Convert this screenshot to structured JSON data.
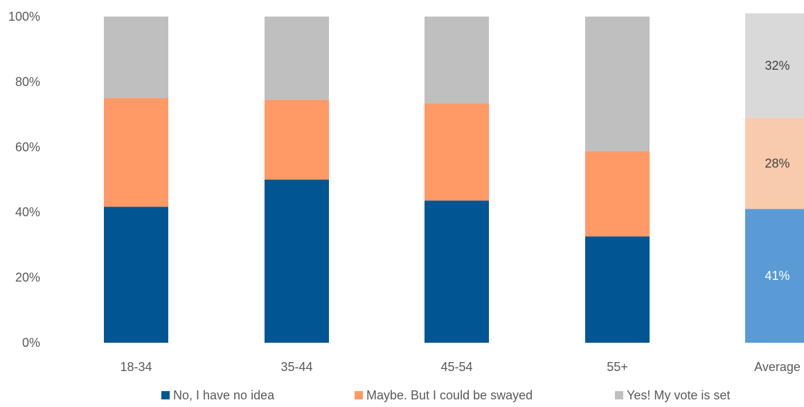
{
  "chart_data": {
    "type": "bar",
    "stacked": true,
    "categories": [
      "18-34",
      "35-44",
      "45-54",
      "55+",
      "Average"
    ],
    "series": [
      {
        "name": "No, I have no idea",
        "values": [
          41.7,
          50.0,
          43.6,
          32.6,
          41
        ],
        "color": "#005592",
        "average_color": "#5B9BD5"
      },
      {
        "name": "Maybe. But I could be swayed",
        "values": [
          33.3,
          24.5,
          29.8,
          26.1,
          28
        ],
        "color": "#FF9966",
        "average_color": "#F8CBAD"
      },
      {
        "name": "Yes! My vote is set",
        "values": [
          25.0,
          25.5,
          26.6,
          41.3,
          32
        ],
        "color": "#BFBFBF",
        "average_color": "#D9D9D9"
      }
    ],
    "average_labels": [
      "41%",
      "28%",
      "32%"
    ],
    "average_label_colors": [
      "#FFFFFF",
      "#404040",
      "#404040"
    ],
    "y_ticks": [
      "0%",
      "20%",
      "40%",
      "60%",
      "80%",
      "100%"
    ],
    "ylim": [
      0,
      100
    ],
    "grid": false,
    "legend_position": "bottom",
    "title": "",
    "xlabel": "",
    "ylabel": ""
  }
}
